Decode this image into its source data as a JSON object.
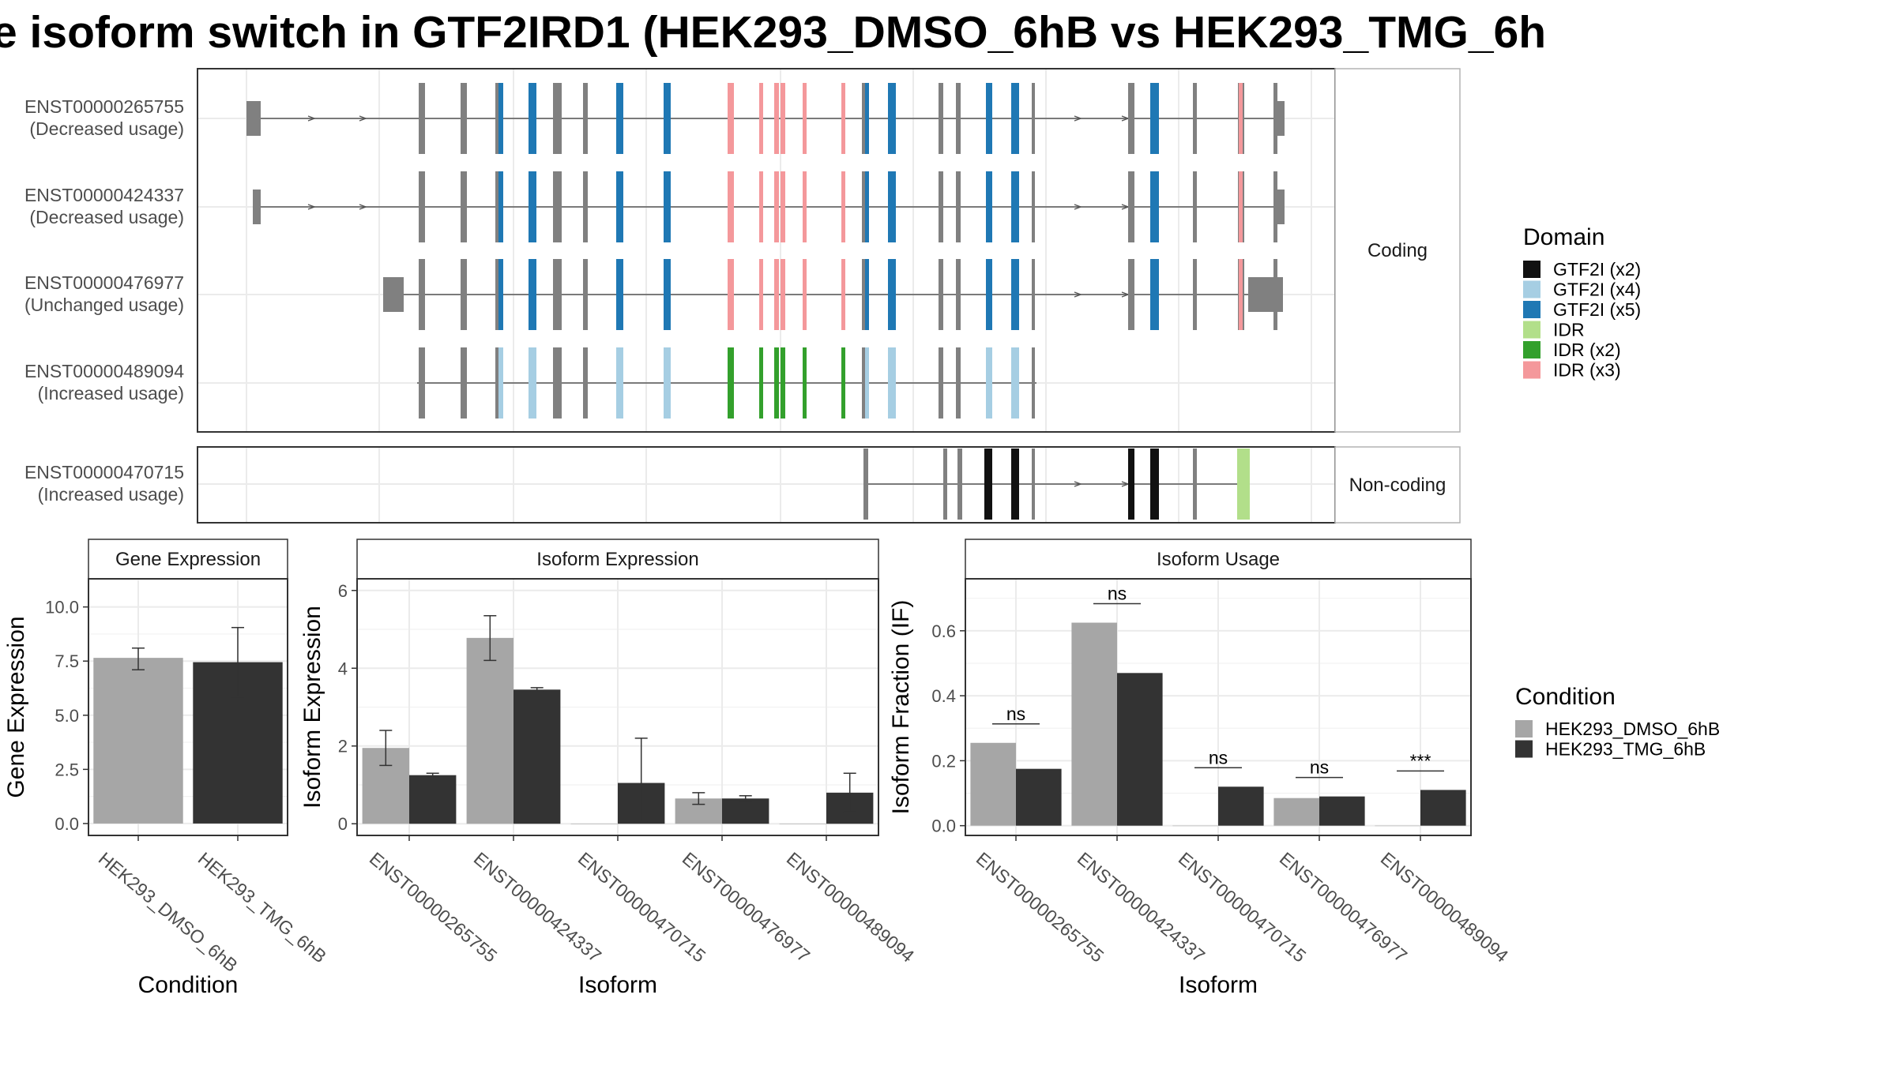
{
  "title": "e isoform switch in GTF2IRD1 (HEK293_DMSO_6hB vs HEK293_TMG_6h",
  "colors": {
    "GTF2I (x2)": "#111111",
    "GTF2I (x4)": "#a6cee3",
    "GTF2I (x5)": "#1f78b4",
    "IDR": "#b2df8a",
    "IDR (x2)": "#33a02c",
    "IDR (x3)": "#f4989b",
    "no_domain": "#808080",
    "HEK293_DMSO_6hB": "#a6a6a6",
    "HEK293_TMG_6hB": "#333333"
  },
  "transcript_panel": {
    "strips": [
      "Coding",
      "Non-coding"
    ],
    "transcripts": [
      {
        "id": "ENST00000265755",
        "usage": "(Decreased usage)",
        "group": "Coding"
      },
      {
        "id": "ENST00000424337",
        "usage": "(Decreased usage)",
        "group": "Coding"
      },
      {
        "id": "ENST00000476977",
        "usage": "(Unchanged usage)",
        "group": "Coding"
      },
      {
        "id": "ENST00000489094",
        "usage": "(Increased usage)",
        "group": "Coding"
      },
      {
        "id": "ENST00000470715",
        "usage": "(Increased usage)",
        "group": "Non-coding"
      }
    ]
  },
  "legend_domain": {
    "title": "Domain",
    "items": [
      "GTF2I (x2)",
      "GTF2I (x4)",
      "GTF2I (x5)",
      "IDR",
      "IDR (x2)",
      "IDR (x3)"
    ]
  },
  "legend_condition": {
    "title": "Condition",
    "items": [
      "HEK293_DMSO_6hB",
      "HEK293_TMG_6hB"
    ]
  },
  "chart_data": [
    {
      "type": "bar",
      "title": "Gene Expression",
      "xlabel": "Condition",
      "ylabel": "Gene Expression",
      "categories": [
        "HEK293_DMSO_6hB",
        "HEK293_TMG_6hB"
      ],
      "values": [
        7.65,
        7.45
      ],
      "errors": [
        [
          7.1,
          8.1
        ],
        [
          5.85,
          9.05
        ]
      ],
      "yticks": [
        "0.0",
        "2.5",
        "5.0",
        "7.5",
        "10.0"
      ],
      "ylim": [
        -0.55,
        11.3
      ],
      "grid": true
    },
    {
      "type": "bar",
      "title": "Isoform Expression",
      "xlabel": "Isoform",
      "ylabel": "Isoform Expression",
      "categories": [
        "ENST00000265755",
        "ENST00000424337",
        "ENST00000470715",
        "ENST00000476977",
        "ENST00000489094"
      ],
      "series": [
        {
          "name": "HEK293_DMSO_6hB",
          "values": [
            1.95,
            4.78,
            0.0,
            0.65,
            0.0
          ],
          "errors": [
            [
              1.5,
              2.4
            ],
            [
              4.2,
              5.35
            ],
            null,
            [
              0.5,
              0.8
            ],
            null
          ]
        },
        {
          "name": "HEK293_TMG_6hB",
          "values": [
            1.25,
            3.45,
            1.05,
            0.65,
            0.8
          ],
          "errors": [
            [
              1.2,
              1.3
            ],
            [
              3.4,
              3.5
            ],
            [
              0.05,
              2.2
            ],
            [
              0.58,
              0.72
            ],
            [
              0.3,
              1.3
            ]
          ]
        }
      ],
      "yticks": [
        "0",
        "2",
        "4",
        "6"
      ],
      "ylim": [
        -0.3,
        6.3
      ],
      "grid": true
    },
    {
      "type": "bar",
      "title": "Isoform Usage",
      "xlabel": "Isoform",
      "ylabel": "Isoform Fraction (IF)",
      "categories": [
        "ENST00000265755",
        "ENST00000424337",
        "ENST00000470715",
        "ENST00000476977",
        "ENST00000489094"
      ],
      "series": [
        {
          "name": "HEK293_DMSO_6hB",
          "values": [
            0.255,
            0.625,
            0.0,
            0.085,
            0.0
          ]
        },
        {
          "name": "HEK293_TMG_6hB",
          "values": [
            0.175,
            0.47,
            0.12,
            0.09,
            0.11
          ]
        }
      ],
      "significance": [
        "ns",
        "ns",
        "ns",
        "ns",
        "***"
      ],
      "yticks": [
        "0.0",
        "0.2",
        "0.4",
        "0.6"
      ],
      "ylim": [
        -0.03,
        0.76
      ],
      "grid": true
    }
  ]
}
